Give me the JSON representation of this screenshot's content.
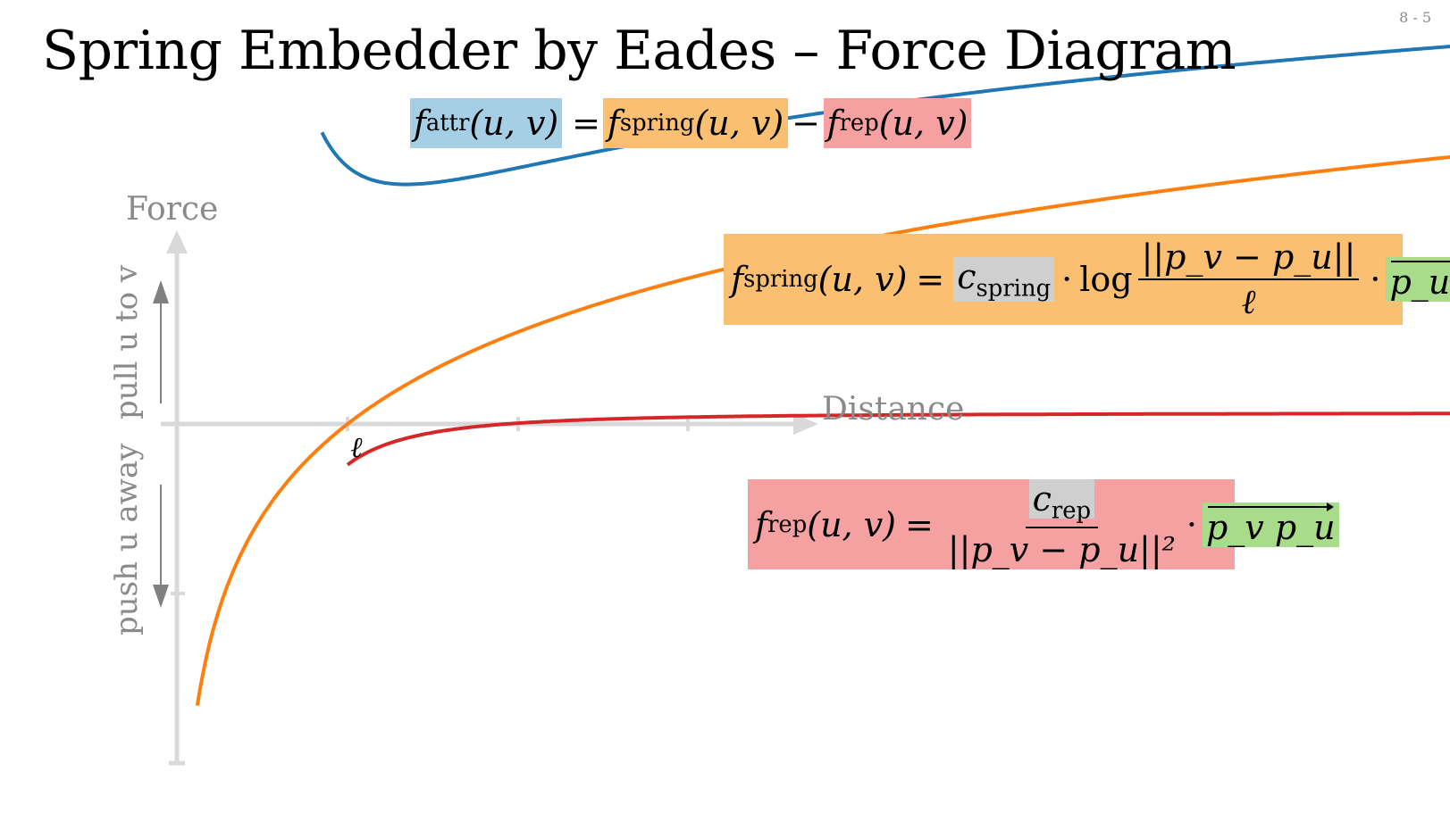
{
  "page_number": "8 - 5",
  "title": "Spring Embedder by Eades – Force Diagram",
  "top_equation": {
    "attr_f": "f",
    "attr_sub": "attr",
    "attr_args": "(u, v)",
    "equals": "=",
    "spring_f": "f",
    "spring_sub": "spring",
    "spring_args": "(u, v)",
    "minus": "−",
    "rep_f": "f",
    "rep_sub": "rep",
    "rep_args": "(u, v)"
  },
  "spring_formula": {
    "lhs_f": "f",
    "lhs_sub": "spring",
    "lhs_args": "(u, v)",
    "equals": "=",
    "c": "c",
    "c_sub": "spring",
    "dot1": "·",
    "log": "log",
    "numerator": "||p_v − p_u||",
    "denominator": "ℓ",
    "dot2": "·",
    "vector": "p_u p_v"
  },
  "rep_formula": {
    "lhs_f": "f",
    "lhs_sub": "rep",
    "lhs_args": "(u, v)",
    "equals": "=",
    "c": "c",
    "c_sub": "rep",
    "denominator": "||p_v − p_u||²",
    "dot": "·",
    "vector": "p_v p_u"
  },
  "axes": {
    "y_label": "Force",
    "x_label": "Distance",
    "x_tick_label": "ℓ",
    "up_label": "pull u to v",
    "down_label": "push u away"
  },
  "colors": {
    "attr_curve": "#1f77b4",
    "spring_curve": "#ff7f0e",
    "rep_curve": "#d62728",
    "axis": "#d9d9d9",
    "arrow": "#808080"
  }
}
